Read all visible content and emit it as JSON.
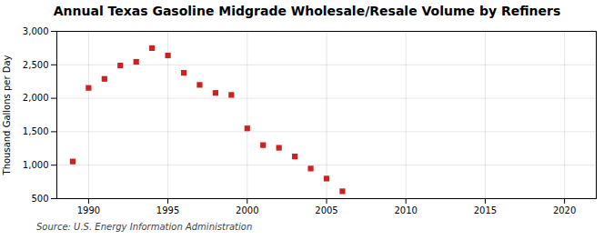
{
  "chart_data": {
    "type": "scatter",
    "title": "Annual Texas Gasoline Midgrade Wholesale/Resale Volume by Refiners",
    "ylabel": "Thousand Gallons per Day",
    "source": "Source: U.S. Energy Information Administration",
    "x": [
      1989,
      1990,
      1991,
      1992,
      1993,
      1994,
      1995,
      1996,
      1997,
      1998,
      1999,
      2000,
      2001,
      2002,
      2003,
      2004,
      2005,
      2006
    ],
    "values": [
      1055,
      2155,
      2290,
      2490,
      2545,
      2750,
      2640,
      2380,
      2200,
      2080,
      2050,
      1550,
      1300,
      1260,
      1130,
      950,
      800,
      610
    ],
    "color": "#cc2222",
    "marker": "square",
    "xlim": [
      1988,
      2022
    ],
    "ylim": [
      500,
      3000
    ],
    "xticks": [
      1990,
      1995,
      2000,
      2005,
      2010,
      2015,
      2020
    ],
    "yticks": [
      500,
      {
        "value": 1000,
        "label": "1,000"
      },
      {
        "value": 1500,
        "label": "1,500"
      },
      {
        "value": 2000,
        "label": "2,000"
      },
      {
        "value": 2500,
        "label": "2,500"
      },
      {
        "value": 3000,
        "label": "3,000"
      }
    ],
    "grid": true
  }
}
